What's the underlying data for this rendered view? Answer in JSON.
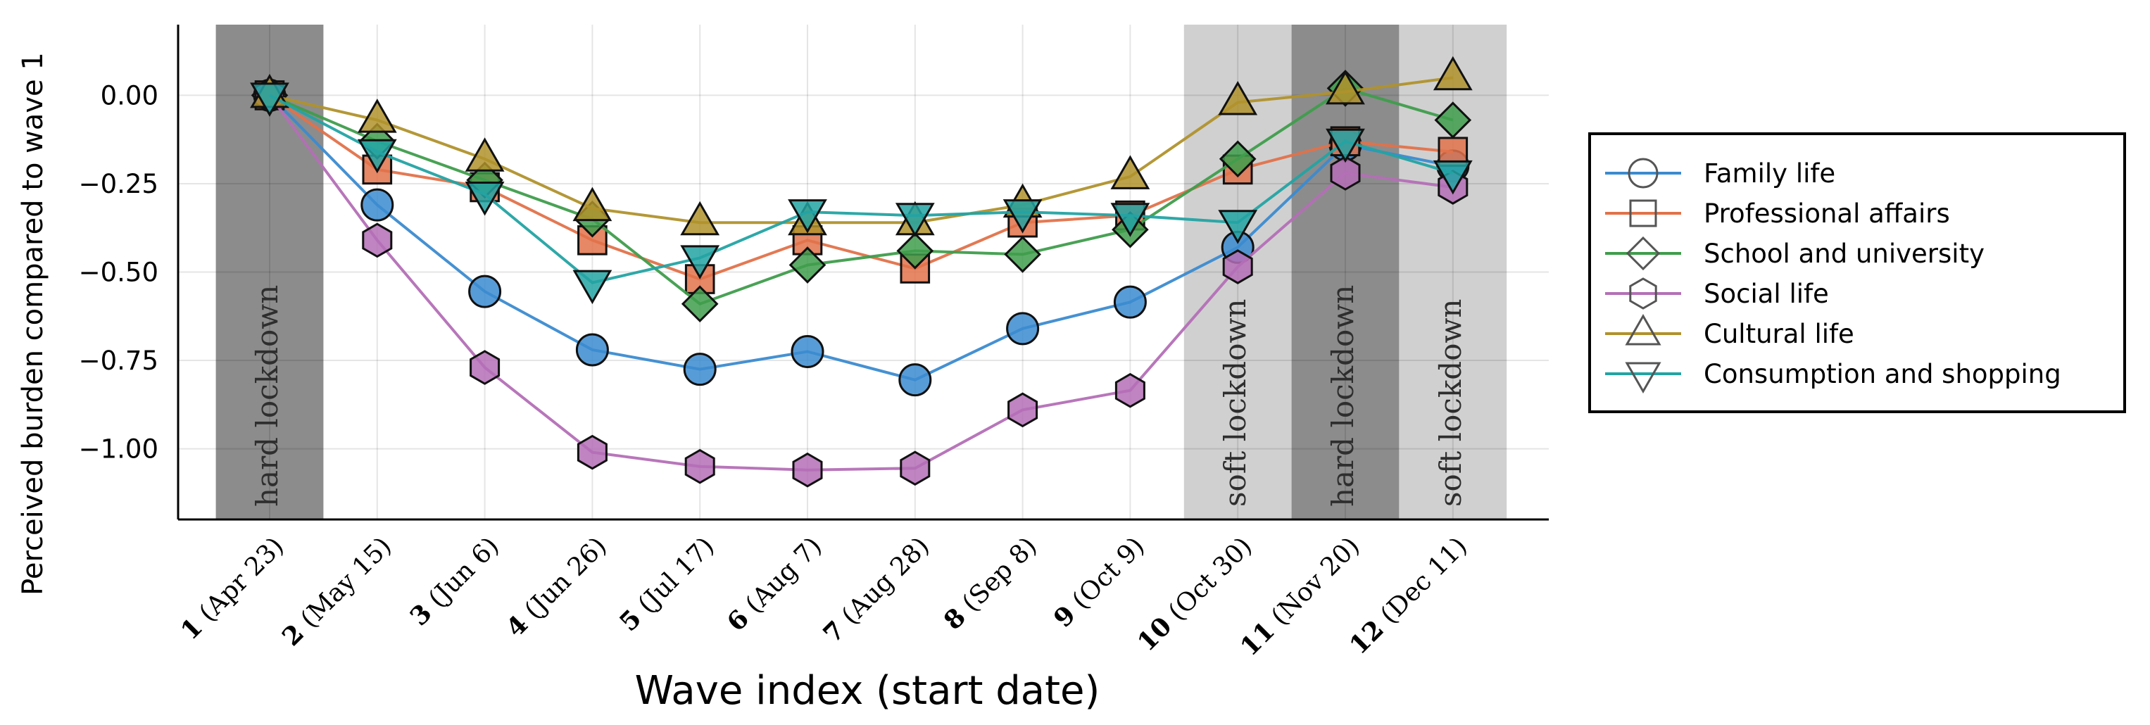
{
  "chart_data": {
    "type": "line",
    "xlabel": "Wave index (start date)",
    "ylabel": "Perceived burden compared to wave 1",
    "ylim": [
      -1.2,
      0.2
    ],
    "yticks": [
      0.0,
      -0.25,
      -0.5,
      -0.75,
      -1.0
    ],
    "ytick_labels": [
      "0.00",
      "−0.25",
      "−0.50",
      "−0.75",
      "−1.00"
    ],
    "grid": true,
    "legend_position": "right",
    "x": [
      1,
      2,
      3,
      4,
      5,
      6,
      7,
      8,
      9,
      10,
      11,
      12
    ],
    "categories": [
      {
        "num": "1",
        "date": "(Apr 23)"
      },
      {
        "num": "2",
        "date": "(May 15)"
      },
      {
        "num": "3",
        "date": "(Jun 6)"
      },
      {
        "num": "4",
        "date": "(Jun 26)"
      },
      {
        "num": "5",
        "date": "(Jul 17)"
      },
      {
        "num": "6",
        "date": "(Aug 7)"
      },
      {
        "num": "7",
        "date": "(Aug 28)"
      },
      {
        "num": "8",
        "date": "(Sep 8)"
      },
      {
        "num": "9",
        "date": "(Oct 9)"
      },
      {
        "num": "10",
        "date": "(Oct 30)"
      },
      {
        "num": "11",
        "date": "(Nov 20)"
      },
      {
        "num": "12",
        "date": "(Dec 11)"
      }
    ],
    "bands": [
      {
        "label": "hard lockdown",
        "wave": 1,
        "color": "#8c8c8c"
      },
      {
        "label": "soft lockdown",
        "wave": 10,
        "color": "#d0d0d0"
      },
      {
        "label": "hard lockdown",
        "wave": 11,
        "color": "#8c8c8c"
      },
      {
        "label": "soft lockdown",
        "wave": 12,
        "color": "#d0d0d0"
      }
    ],
    "series": [
      {
        "name": "Family life",
        "marker": "circle",
        "color": "#3b8bd0",
        "values": [
          0.0,
          -0.31,
          -0.555,
          -0.72,
          -0.775,
          -0.725,
          -0.805,
          -0.66,
          -0.585,
          -0.43,
          -0.14,
          -0.2
        ]
      },
      {
        "name": "Professional affairs",
        "marker": "square",
        "color": "#e2724a",
        "values": [
          0.0,
          -0.21,
          -0.26,
          -0.41,
          -0.52,
          -0.41,
          -0.49,
          -0.36,
          -0.34,
          -0.21,
          -0.13,
          -0.16
        ]
      },
      {
        "name": "School and university",
        "marker": "diamond",
        "color": "#3f9d4c",
        "values": [
          0.0,
          -0.13,
          -0.24,
          -0.35,
          -0.59,
          -0.48,
          -0.44,
          -0.45,
          -0.38,
          -0.18,
          0.02,
          -0.07
        ]
      },
      {
        "name": "Social life",
        "marker": "hexagon",
        "color": "#b46fb6",
        "values": [
          0.0,
          -0.41,
          -0.77,
          -1.01,
          -1.05,
          -1.06,
          -1.055,
          -0.89,
          -0.835,
          -0.485,
          -0.22,
          -0.26
        ]
      },
      {
        "name": "Cultural life",
        "marker": "triangle-up",
        "color": "#b0922c",
        "values": [
          0.0,
          -0.07,
          -0.18,
          -0.32,
          -0.36,
          -0.36,
          -0.36,
          -0.31,
          -0.23,
          -0.02,
          0.01,
          0.05
        ]
      },
      {
        "name": "Consumption and shopping",
        "marker": "triangle-down",
        "color": "#23a3a3",
        "values": [
          0.0,
          -0.16,
          -0.28,
          -0.53,
          -0.46,
          -0.33,
          -0.34,
          -0.33,
          -0.34,
          -0.36,
          -0.13,
          -0.22
        ]
      }
    ]
  }
}
